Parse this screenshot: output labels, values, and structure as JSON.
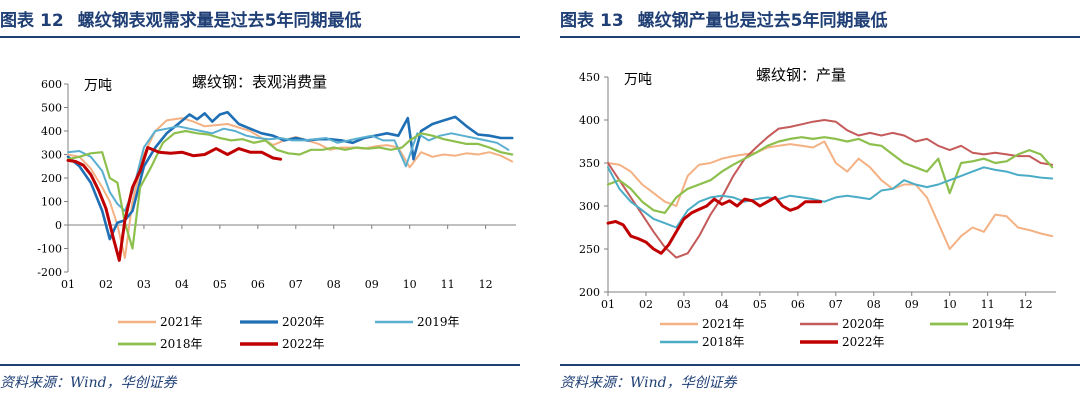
{
  "panels": [
    {
      "figure_label": "图表",
      "figure_number": "12",
      "title": "螺纹钢表观需求量是过去5年同期最低",
      "source": "资料来源：Wind，华创证券"
    },
    {
      "figure_label": "图表",
      "figure_number": "13",
      "title": "螺纹钢产量也是过去5年同期最低",
      "source": "资料来源：Wind，华创证券"
    }
  ],
  "chart_data": [
    {
      "type": "line",
      "title": "螺纹钢：表观消费量",
      "unit_label": "万吨",
      "xlabel": "",
      "ylabel": "万吨",
      "ylim": [
        -200,
        600
      ],
      "yticks": [
        -200,
        -100,
        0,
        100,
        200,
        300,
        400,
        500,
        600
      ],
      "xticks": [
        "01",
        "02",
        "03",
        "04",
        "05",
        "06",
        "07",
        "08",
        "09",
        "10",
        "11",
        "12"
      ],
      "xrange": [
        1,
        12.8
      ],
      "series": [
        {
          "name": "2021年",
          "color": "#f4b183",
          "width": 2,
          "x": [
            1,
            1.3,
            1.6,
            1.9,
            2.1,
            2.3,
            2.5,
            2.7,
            3.0,
            3.3,
            3.6,
            4.0,
            4.3,
            4.6,
            4.9,
            5.2,
            5.5,
            5.8,
            6.1,
            6.4,
            6.7,
            7.0,
            7.3,
            7.6,
            7.9,
            8.2,
            8.5,
            8.8,
            9.1,
            9.4,
            9.7,
            10.0,
            10.3,
            10.6,
            10.9,
            11.2,
            11.5,
            11.8,
            12.1,
            12.4,
            12.7
          ],
          "y": [
            300,
            290,
            240,
            160,
            100,
            0,
            -140,
            100,
            300,
            400,
            445,
            455,
            440,
            420,
            425,
            430,
            415,
            400,
            370,
            340,
            360,
            375,
            360,
            345,
            320,
            330,
            330,
            325,
            335,
            340,
            330,
            245,
            310,
            290,
            300,
            295,
            305,
            300,
            310,
            295,
            270
          ]
        },
        {
          "name": "2020年",
          "color": "#1f6fb5",
          "width": 2.6,
          "x": [
            1,
            1.3,
            1.6,
            1.9,
            2.1,
            2.3,
            2.5,
            2.7,
            3.0,
            3.3,
            3.6,
            3.9,
            4.2,
            4.4,
            4.6,
            4.8,
            5.0,
            5.2,
            5.5,
            5.8,
            6.1,
            6.4,
            6.7,
            7.0,
            7.3,
            7.6,
            7.9,
            8.2,
            8.5,
            8.8,
            9.1,
            9.4,
            9.7,
            9.95,
            10.1,
            10.3,
            10.6,
            10.9,
            11.2,
            11.5,
            11.8,
            12.1,
            12.4,
            12.7
          ],
          "y": [
            290,
            250,
            180,
            60,
            -60,
            10,
            20,
            60,
            250,
            330,
            390,
            430,
            470,
            450,
            475,
            440,
            470,
            480,
            430,
            410,
            390,
            380,
            360,
            370,
            360,
            365,
            365,
            360,
            350,
            370,
            380,
            390,
            380,
            455,
            280,
            400,
            430,
            445,
            460,
            420,
            385,
            380,
            370,
            370
          ]
        },
        {
          "name": "2019年",
          "color": "#5aafd0",
          "width": 2,
          "x": [
            1,
            1.3,
            1.6,
            1.9,
            2.1,
            2.3,
            2.5,
            2.7,
            3.0,
            3.3,
            3.6,
            3.9,
            4.2,
            4.5,
            4.8,
            5.1,
            5.4,
            5.7,
            6.0,
            6.3,
            6.6,
            6.9,
            7.2,
            7.5,
            7.8,
            8.1,
            8.4,
            8.7,
            9.0,
            9.3,
            9.6,
            9.9,
            10.2,
            10.5,
            10.8,
            11.1,
            11.4,
            11.7,
            12.0,
            12.3,
            12.6
          ],
          "y": [
            310,
            315,
            290,
            230,
            140,
            90,
            60,
            140,
            330,
            400,
            410,
            420,
            410,
            400,
            390,
            410,
            400,
            380,
            370,
            365,
            370,
            360,
            360,
            365,
            370,
            350,
            360,
            370,
            380,
            360,
            360,
            250,
            390,
            360,
            380,
            390,
            380,
            370,
            360,
            350,
            320
          ]
        },
        {
          "name": "2018年",
          "color": "#8dbf4d",
          "width": 2.2,
          "x": [
            1,
            1.3,
            1.6,
            1.9,
            2.1,
            2.3,
            2.5,
            2.7,
            2.9,
            3.2,
            3.5,
            3.8,
            4.1,
            4.4,
            4.7,
            5.0,
            5.3,
            5.6,
            5.9,
            6.2,
            6.5,
            6.8,
            7.1,
            7.4,
            7.7,
            8.0,
            8.3,
            8.6,
            8.9,
            9.2,
            9.5,
            9.8,
            10.0,
            10.3,
            10.6,
            10.9,
            11.2,
            11.5,
            11.8,
            12.1,
            12.4,
            12.7
          ],
          "y": [
            280,
            290,
            305,
            310,
            200,
            180,
            10,
            -100,
            160,
            250,
            350,
            390,
            400,
            390,
            385,
            370,
            360,
            365,
            350,
            360,
            320,
            305,
            300,
            320,
            320,
            330,
            320,
            330,
            325,
            330,
            320,
            330,
            360,
            390,
            380,
            365,
            355,
            345,
            345,
            330,
            310,
            300
          ]
        },
        {
          "name": "2022年",
          "color": "#c00000",
          "width": 3,
          "x": [
            1,
            1.2,
            1.4,
            1.6,
            1.8,
            2.0,
            2.2,
            2.35,
            2.5,
            2.7,
            2.9,
            3.1,
            3.4,
            3.7,
            4.0,
            4.3,
            4.6,
            4.9,
            5.2,
            5.5,
            5.8,
            6.1,
            6.4,
            6.6
          ],
          "y": [
            275,
            270,
            255,
            215,
            150,
            70,
            -60,
            -150,
            20,
            160,
            230,
            330,
            310,
            305,
            310,
            295,
            300,
            325,
            300,
            325,
            310,
            310,
            285,
            280
          ]
        }
      ],
      "legend": [
        "2021年",
        "2020年",
        "2019年",
        "2018年",
        "2022年"
      ]
    },
    {
      "type": "line",
      "title": "螺纹钢：产量",
      "unit_label": "万吨",
      "xlabel": "",
      "ylabel": "万吨",
      "ylim": [
        200,
        450
      ],
      "yticks": [
        200,
        250,
        300,
        350,
        400,
        450
      ],
      "xticks": [
        "01",
        "02",
        "03",
        "04",
        "05",
        "06",
        "07",
        "08",
        "09",
        "10",
        "11",
        "12"
      ],
      "xrange": [
        1,
        12.8
      ],
      "series": [
        {
          "name": "2021年",
          "color": "#f4b183",
          "width": 2,
          "x": [
            1,
            1.3,
            1.6,
            1.9,
            2.2,
            2.5,
            2.8,
            3.1,
            3.4,
            3.7,
            4.0,
            4.3,
            4.6,
            4.9,
            5.2,
            5.5,
            5.8,
            6.1,
            6.4,
            6.7,
            7.0,
            7.3,
            7.6,
            7.9,
            8.2,
            8.5,
            8.8,
            9.1,
            9.4,
            9.7,
            10.0,
            10.3,
            10.6,
            10.9,
            11.2,
            11.5,
            11.8,
            12.1,
            12.4,
            12.7
          ],
          "y": [
            350,
            348,
            340,
            325,
            315,
            305,
            300,
            335,
            348,
            350,
            355,
            358,
            360,
            362,
            368,
            370,
            372,
            370,
            368,
            375,
            350,
            340,
            355,
            345,
            330,
            320,
            325,
            325,
            310,
            280,
            250,
            265,
            275,
            270,
            290,
            288,
            275,
            272,
            268,
            265
          ]
        },
        {
          "name": "2020年",
          "color": "#c55a5a",
          "width": 2,
          "x": [
            1,
            1.3,
            1.6,
            1.9,
            2.2,
            2.5,
            2.8,
            3.1,
            3.4,
            3.7,
            4.0,
            4.3,
            4.6,
            4.9,
            5.2,
            5.5,
            5.8,
            6.1,
            6.4,
            6.7,
            7.0,
            7.3,
            7.6,
            7.9,
            8.2,
            8.5,
            8.8,
            9.1,
            9.4,
            9.7,
            10.0,
            10.3,
            10.6,
            10.9,
            11.2,
            11.5,
            11.8,
            12.1,
            12.4,
            12.7
          ],
          "y": [
            350,
            330,
            310,
            290,
            270,
            252,
            240,
            245,
            265,
            290,
            310,
            335,
            355,
            368,
            380,
            390,
            392,
            395,
            398,
            400,
            398,
            388,
            382,
            385,
            382,
            385,
            382,
            375,
            378,
            370,
            365,
            370,
            362,
            360,
            362,
            360,
            358,
            358,
            350,
            348
          ]
        },
        {
          "name": "2019年",
          "color": "#8dbf4d",
          "width": 2.2,
          "x": [
            1,
            1.3,
            1.6,
            1.9,
            2.2,
            2.5,
            2.8,
            3.1,
            3.4,
            3.7,
            4.0,
            4.3,
            4.6,
            4.9,
            5.2,
            5.5,
            5.8,
            6.1,
            6.4,
            6.7,
            7.0,
            7.3,
            7.6,
            7.9,
            8.2,
            8.5,
            8.8,
            9.1,
            9.4,
            9.7,
            10.0,
            10.3,
            10.6,
            10.9,
            11.2,
            11.5,
            11.8,
            12.1,
            12.4,
            12.7
          ],
          "y": [
            325,
            330,
            320,
            305,
            295,
            292,
            310,
            320,
            325,
            330,
            340,
            348,
            355,
            362,
            370,
            375,
            378,
            380,
            378,
            380,
            378,
            375,
            378,
            372,
            370,
            360,
            350,
            345,
            340,
            355,
            315,
            350,
            352,
            355,
            350,
            352,
            360,
            365,
            360,
            345
          ]
        },
        {
          "name": "2018年",
          "color": "#4bacc6",
          "width": 2,
          "x": [
            1,
            1.3,
            1.6,
            1.9,
            2.2,
            2.5,
            2.8,
            3.1,
            3.4,
            3.7,
            4.0,
            4.3,
            4.6,
            4.9,
            5.2,
            5.5,
            5.8,
            6.1,
            6.4,
            6.7,
            7.0,
            7.3,
            7.6,
            7.9,
            8.2,
            8.5,
            8.8,
            9.1,
            9.4,
            9.7,
            10.0,
            10.3,
            10.6,
            10.9,
            11.2,
            11.5,
            11.8,
            12.1,
            12.4,
            12.7
          ],
          "y": [
            345,
            320,
            305,
            295,
            285,
            280,
            275,
            295,
            305,
            310,
            312,
            310,
            305,
            308,
            310,
            308,
            312,
            310,
            308,
            305,
            310,
            312,
            310,
            308,
            318,
            320,
            330,
            325,
            322,
            325,
            330,
            335,
            340,
            345,
            342,
            340,
            336,
            335,
            333,
            332
          ]
        },
        {
          "name": "2022年",
          "color": "#c00000",
          "width": 3,
          "x": [
            1,
            1.2,
            1.4,
            1.6,
            1.8,
            2.0,
            2.2,
            2.4,
            2.6,
            2.8,
            3.0,
            3.2,
            3.4,
            3.6,
            3.8,
            4.0,
            4.2,
            4.4,
            4.6,
            4.8,
            5.0,
            5.2,
            5.4,
            5.6,
            5.8,
            6.0,
            6.2,
            6.4,
            6.6
          ],
          "y": [
            280,
            282,
            278,
            265,
            262,
            258,
            250,
            245,
            255,
            270,
            285,
            292,
            296,
            300,
            308,
            302,
            306,
            300,
            308,
            306,
            300,
            305,
            310,
            300,
            295,
            298,
            305,
            305,
            305
          ]
        }
      ],
      "legend": [
        "2021年",
        "2020年",
        "2019年",
        "2018年",
        "2022年"
      ]
    }
  ]
}
